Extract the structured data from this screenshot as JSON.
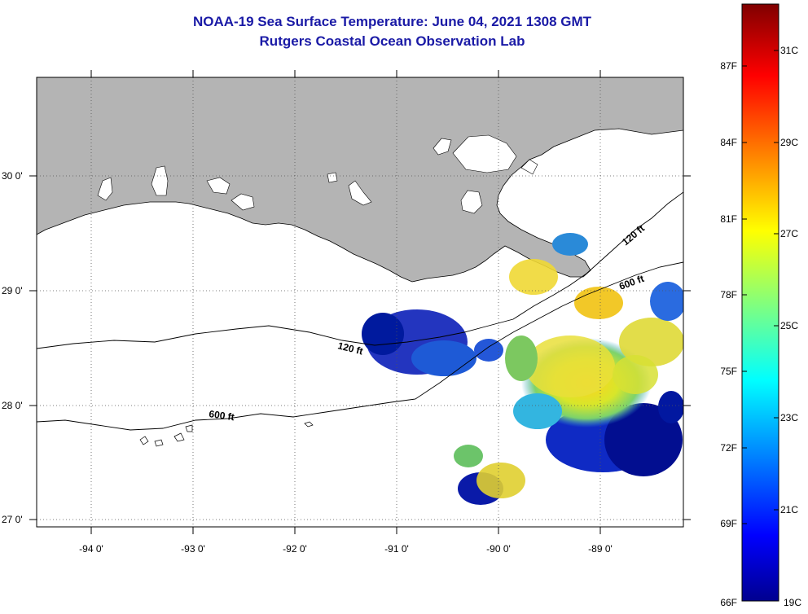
{
  "header": {
    "title": "NOAA-19 Sea Surface Temperature:  June 04, 2021 1308 GMT",
    "subtitle": "Rutgers Coastal Ocean Observation Lab"
  },
  "map": {
    "lon_range": [
      -94.55,
      -88.25
    ],
    "lat_range": [
      26.95,
      30.85
    ],
    "lon_ticks": [
      {
        "value": -94,
        "label": "-94 0'"
      },
      {
        "value": -93,
        "label": "-93 0'"
      },
      {
        "value": -92,
        "label": "-92 0'"
      },
      {
        "value": -91,
        "label": "-91 0'"
      },
      {
        "value": -90,
        "label": "-90 0'"
      },
      {
        "value": -89,
        "label": "-89 0'"
      }
    ],
    "lat_ticks": [
      {
        "value": 27,
        "label": "27 0'"
      },
      {
        "value": 28,
        "label": "28 0'"
      },
      {
        "value": 29,
        "label": "29 0'"
      },
      {
        "value": 30,
        "label": "30 0'"
      }
    ],
    "grid": "dotted",
    "land_color": "#b4b4b4",
    "isobaths": [
      {
        "label": "120 ft",
        "depth_ft": 120
      },
      {
        "label": "600 ft",
        "depth_ft": 600
      }
    ],
    "isobath_labels": [
      "120 ft",
      "600 ft",
      "120 ft",
      "600 ft"
    ]
  },
  "colorbar": {
    "fahrenheit": [
      "87F",
      "84F",
      "81F",
      "78F",
      "75F",
      "72F",
      "69F",
      "66F"
    ],
    "celsius": [
      "31C",
      "29C",
      "27C",
      "25C",
      "23C",
      "21C",
      "19C"
    ],
    "range_c": [
      19,
      32.5
    ],
    "colors": [
      "#00008f",
      "#0000ff",
      "#00ffff",
      "#ffff00",
      "#ff8000",
      "#ff0000",
      "#800000"
    ]
  }
}
